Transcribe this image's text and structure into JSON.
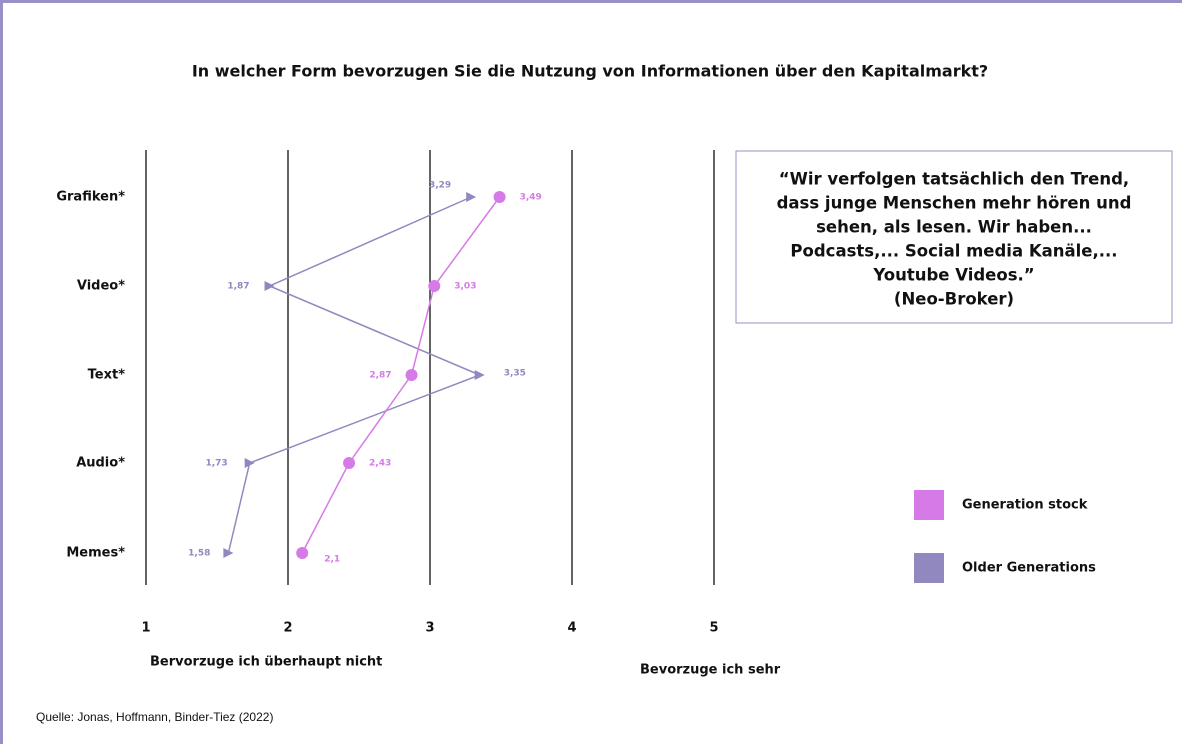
{
  "chart_data": {
    "type": "line",
    "title": "In welcher Form bevorzugen Sie die Nutzung von Informationen über den Kapitalmarkt?",
    "categories": [
      "Grafiken*",
      "Video*",
      "Text*",
      "Audio*",
      "Memes*"
    ],
    "series": [
      {
        "name": "Generation stock",
        "color": "#d67ae8",
        "values": [
          3.49,
          3.03,
          2.87,
          2.43,
          2.1
        ],
        "value_labels": [
          "3,49",
          "3,03",
          "2,87",
          "2,43",
          "2,1"
        ]
      },
      {
        "name": "Older Generations",
        "color": "#9088bf",
        "values": [
          3.29,
          1.87,
          3.35,
          1.73,
          1.58
        ],
        "value_labels": [
          "3,29",
          "1,87",
          "3,35",
          "1,73",
          "1,58"
        ]
      }
    ],
    "xlim": [
      1,
      5
    ],
    "xticks": [
      1,
      2,
      3,
      4,
      5
    ],
    "grid": true,
    "xlabel_left": "Bervorzuge ich überhaupt nicht",
    "xlabel_right": "Bevorzuge ich sehr",
    "quote": [
      "“Wir verfolgen tatsächlich den Trend,",
      "dass junge Menschen mehr hören und",
      "sehen, als lesen. Wir haben...",
      "Podcasts,... Social media Kanäle,...",
      "Youtube Videos.”",
      "(Neo-Broker)"
    ],
    "source": "Quelle: Jonas, Hoffmann, Binder-Tiez (2022)"
  }
}
